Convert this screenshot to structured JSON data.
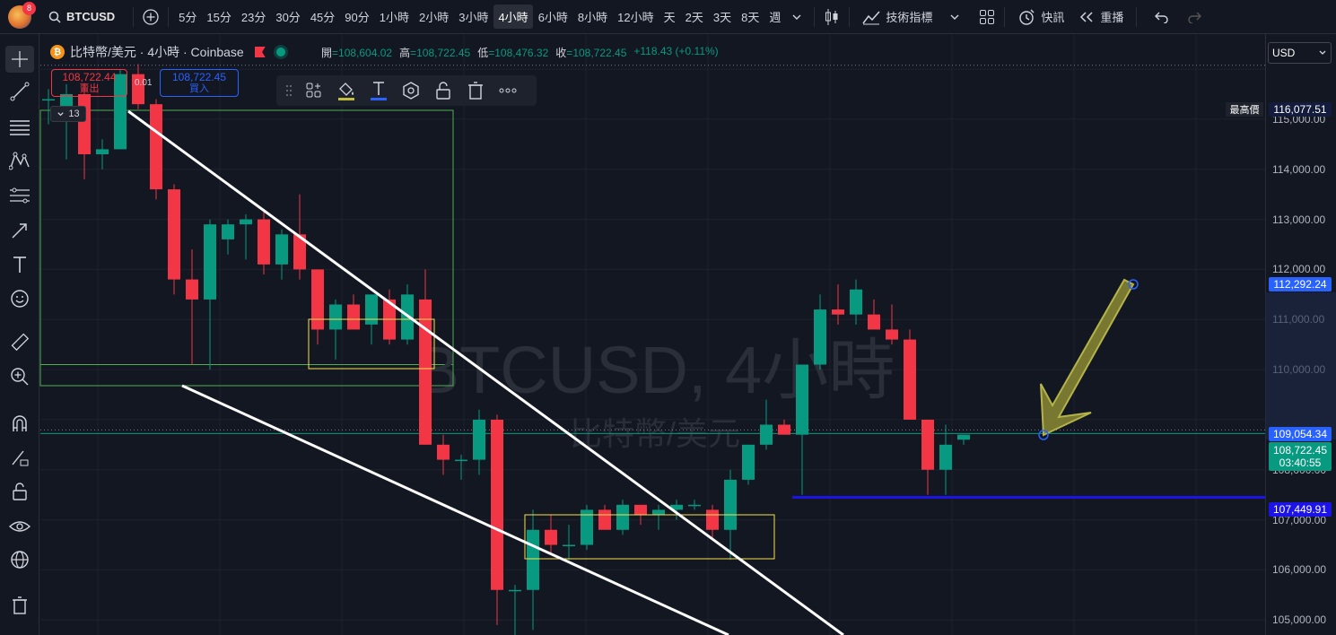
{
  "app": {
    "notification_count": "8"
  },
  "toolbar": {
    "symbol": "BTCUSD",
    "intervals": [
      "5分",
      "15分",
      "23分",
      "30分",
      "45分",
      "90分",
      "1小時",
      "2小時",
      "3小時",
      "4小時",
      "6小時",
      "8小時",
      "12小時",
      "天",
      "2天",
      "3天",
      "8天",
      "週"
    ],
    "active_interval": "4小時",
    "indicators_label": "技術指標",
    "alerts_label": "快訊",
    "replay_label": "重播"
  },
  "legend": {
    "title": "比特幣/美元 · 4小時 · Coinbase",
    "open_label": "開",
    "open": "108,604.02",
    "high_label": "高",
    "high": "108,722.45",
    "low_label": "低",
    "low": "108,476.32",
    "close_label": "收",
    "close": "108,722.45",
    "change": "+118.43 (+0.11%)"
  },
  "trade": {
    "sell_price": "108,722.44",
    "sell_label": "賣出",
    "buy_price": "108,722.45",
    "buy_label": "買入",
    "spread": "0.01"
  },
  "currency": "USD",
  "bars_count": "13",
  "watermark": {
    "symbol": "BTCUSD, 4小時",
    "name": "比特幣/美元"
  },
  "price_axis": {
    "ticks": [
      "115,000.00",
      "114,000.00",
      "113,000.00",
      "112,000.00",
      "111,000.00",
      "110,000.00",
      "108,000.00",
      "107,000.00",
      "106,000.00",
      "105,000.00"
    ],
    "high_tag": "最高價",
    "high_value": "116,077.51",
    "label_112": "112,292.24",
    "label_109": "109,054.34",
    "last_price": "108,722.45",
    "countdown": "03:40:55",
    "support": "107,449.91"
  },
  "colors": {
    "up": "#089981",
    "down": "#f23645",
    "bg": "#131722",
    "accent": "#2962ff"
  },
  "chart_data": {
    "type": "candlestick",
    "candles": [
      {
        "o": 115400,
        "h": 115600,
        "l": 114900,
        "c": 115400
      },
      {
        "o": 115000,
        "h": 115700,
        "l": 114200,
        "c": 115500
      },
      {
        "o": 115500,
        "h": 115700,
        "l": 113800,
        "c": 114300
      },
      {
        "o": 114300,
        "h": 114600,
        "l": 114000,
        "c": 114400
      },
      {
        "o": 114400,
        "h": 116000,
        "l": 114400,
        "c": 115900
      },
      {
        "o": 115900,
        "h": 116100,
        "l": 115200,
        "c": 115300
      },
      {
        "o": 115300,
        "h": 115400,
        "l": 113400,
        "c": 113600
      },
      {
        "o": 113600,
        "h": 113700,
        "l": 111500,
        "c": 111800
      },
      {
        "o": 111800,
        "h": 112400,
        "l": 110100,
        "c": 111400
      },
      {
        "o": 111400,
        "h": 113000,
        "l": 110000,
        "c": 112900
      },
      {
        "o": 112600,
        "h": 113000,
        "l": 112300,
        "c": 112900
      },
      {
        "o": 112900,
        "h": 113100,
        "l": 112200,
        "c": 113000
      },
      {
        "o": 113000,
        "h": 113200,
        "l": 111900,
        "c": 112100
      },
      {
        "o": 112100,
        "h": 112800,
        "l": 111800,
        "c": 112700
      },
      {
        "o": 112700,
        "h": 113500,
        "l": 111800,
        "c": 112000
      },
      {
        "o": 112000,
        "h": 112000,
        "l": 110500,
        "c": 110800
      },
      {
        "o": 110800,
        "h": 111400,
        "l": 110200,
        "c": 111300
      },
      {
        "o": 111300,
        "h": 111500,
        "l": 110800,
        "c": 110800
      },
      {
        "o": 110900,
        "h": 111500,
        "l": 110500,
        "c": 111500
      },
      {
        "o": 111400,
        "h": 111600,
        "l": 110500,
        "c": 110600
      },
      {
        "o": 110600,
        "h": 111700,
        "l": 110500,
        "c": 111500
      },
      {
        "o": 111400,
        "h": 112000,
        "l": 108500,
        "c": 108500
      },
      {
        "o": 108500,
        "h": 108700,
        "l": 107900,
        "c": 108200
      },
      {
        "o": 108200,
        "h": 108300,
        "l": 107800,
        "c": 108200
      },
      {
        "o": 108200,
        "h": 109200,
        "l": 107900,
        "c": 109000
      },
      {
        "o": 109000,
        "h": 109100,
        "l": 104900,
        "c": 105600
      },
      {
        "o": 105600,
        "h": 105700,
        "l": 104700,
        "c": 105600
      },
      {
        "o": 105600,
        "h": 107200,
        "l": 104800,
        "c": 106800
      },
      {
        "o": 106800,
        "h": 107100,
        "l": 106300,
        "c": 106500
      },
      {
        "o": 106500,
        "h": 106900,
        "l": 106200,
        "c": 106500
      },
      {
        "o": 106500,
        "h": 107300,
        "l": 106400,
        "c": 107200
      },
      {
        "o": 107200,
        "h": 107300,
        "l": 106900,
        "c": 106800
      },
      {
        "o": 106800,
        "h": 107400,
        "l": 106700,
        "c": 107300
      },
      {
        "o": 107300,
        "h": 107300,
        "l": 106900,
        "c": 107100
      },
      {
        "o": 107100,
        "h": 107300,
        "l": 106800,
        "c": 107200
      },
      {
        "o": 107200,
        "h": 107400,
        "l": 107000,
        "c": 107300
      },
      {
        "o": 107300,
        "h": 107400,
        "l": 107200,
        "c": 107300
      },
      {
        "o": 107200,
        "h": 107300,
        "l": 106600,
        "c": 106800
      },
      {
        "o": 106800,
        "h": 108000,
        "l": 106200,
        "c": 107800
      },
      {
        "o": 107800,
        "h": 108500,
        "l": 107700,
        "c": 108500
      },
      {
        "o": 108500,
        "h": 109400,
        "l": 108400,
        "c": 108900
      },
      {
        "o": 108900,
        "h": 109000,
        "l": 108700,
        "c": 108700
      },
      {
        "o": 108700,
        "h": 110100,
        "l": 107500,
        "c": 110100
      },
      {
        "o": 110100,
        "h": 111500,
        "l": 110000,
        "c": 111200
      },
      {
        "o": 111200,
        "h": 111700,
        "l": 110900,
        "c": 111100
      },
      {
        "o": 111100,
        "h": 111800,
        "l": 110900,
        "c": 111600
      },
      {
        "o": 111100,
        "h": 111400,
        "l": 110800,
        "c": 110800
      },
      {
        "o": 110800,
        "h": 111300,
        "l": 110500,
        "c": 110600
      },
      {
        "o": 110600,
        "h": 110800,
        "l": 109000,
        "c": 109000
      },
      {
        "o": 109000,
        "h": 109000,
        "l": 107500,
        "c": 108000
      },
      {
        "o": 108000,
        "h": 108900,
        "l": 107500,
        "c": 108500
      },
      {
        "o": 108600,
        "h": 108700,
        "l": 108500,
        "c": 108700
      }
    ],
    "ylim": [
      104700,
      116700
    ],
    "lines": {
      "high": 116077.51,
      "last": 108722.45,
      "support": 107449.91,
      "upper_box_bottom": 110100
    }
  }
}
